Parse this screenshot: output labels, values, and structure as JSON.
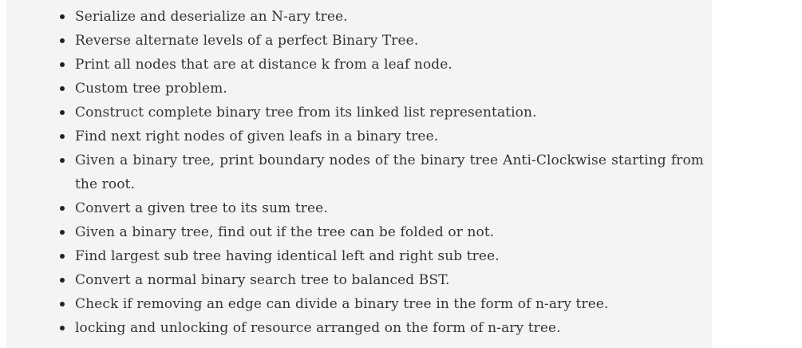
{
  "topics": {
    "items": [
      "Serialize and deserialize an N-ary tree.",
      "Reverse alternate levels of a perfect Binary Tree.",
      "Print all nodes that are at distance k from a leaf node.",
      "Custom tree problem.",
      "Construct complete binary tree from its linked list representation.",
      "Find next right nodes of given leafs in a binary tree.",
      "Given a binary tree, print boundary nodes of the binary tree Anti-Clockwise starting from the root.",
      "Convert a given tree to its sum tree.",
      "Given a binary tree, find out if the tree can be folded or not.",
      "Find largest sub tree having identical left and right sub tree.",
      "Convert a normal binary search tree to balanced BST.",
      "Check if removing an edge can divide a binary tree in the form of n-ary tree.",
      "locking and unlocking of resource arranged on the form of n-ary tree."
    ]
  }
}
